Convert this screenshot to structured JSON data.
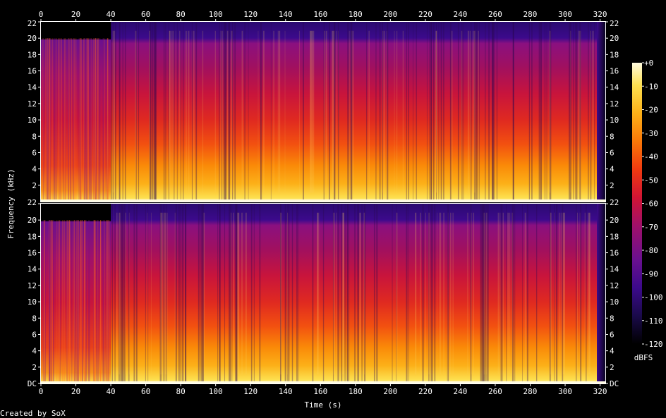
{
  "chart_data": {
    "type": "heatmap",
    "xlabel": "Time (s)",
    "ylabel": "Frequency (kHz)",
    "xlim": [
      0,
      323
    ],
    "ylim_khz": [
      0,
      22
    ],
    "x_ticks": [
      0,
      20,
      40,
      60,
      80,
      100,
      120,
      140,
      160,
      180,
      200,
      220,
      240,
      260,
      280,
      300,
      320
    ],
    "y_ticks": [
      {
        "v": 0,
        "label": "DC"
      },
      {
        "v": 2,
        "label": "2"
      },
      {
        "v": 4,
        "label": "4"
      },
      {
        "v": 6,
        "label": "6"
      },
      {
        "v": 8,
        "label": "8"
      },
      {
        "v": 10,
        "label": "10"
      },
      {
        "v": 12,
        "label": "12"
      },
      {
        "v": 14,
        "label": "14"
      },
      {
        "v": 16,
        "label": "16"
      },
      {
        "v": 18,
        "label": "18"
      },
      {
        "v": 20,
        "label": "20"
      },
      {
        "v": 22,
        "label": "22"
      }
    ],
    "channels": 2,
    "colorbar": {
      "label": "dBFS",
      "range": [
        -120,
        0
      ],
      "ticks": [
        {
          "v": 0,
          "label": "+0"
        },
        {
          "v": -10,
          "label": "-10"
        },
        {
          "v": -20,
          "label": "-20"
        },
        {
          "v": -30,
          "label": "-30"
        },
        {
          "v": -40,
          "label": "-40"
        },
        {
          "v": -50,
          "label": "-50"
        },
        {
          "v": -60,
          "label": "-60"
        },
        {
          "v": -70,
          "label": "-70"
        },
        {
          "v": -80,
          "label": "-80"
        },
        {
          "v": -90,
          "label": "-90"
        },
        {
          "v": -100,
          "label": "-100"
        },
        {
          "v": -110,
          "label": "-110"
        },
        {
          "v": -120,
          "label": "-120"
        }
      ]
    },
    "lowpass_cutoff_khz_before_40s": 20,
    "segment_change_s": 40,
    "fadeout_end_s": 323
  },
  "credit": "Created by SoX",
  "colors": {
    "background": "#000000",
    "axis": "#ffffff",
    "palette": [
      "#000000",
      "#1a0a4a",
      "#3c0a8c",
      "#6a1090",
      "#a0106a",
      "#d01434",
      "#f03a10",
      "#fa7808",
      "#fcb018",
      "#fde050",
      "#fffbe0"
    ]
  }
}
